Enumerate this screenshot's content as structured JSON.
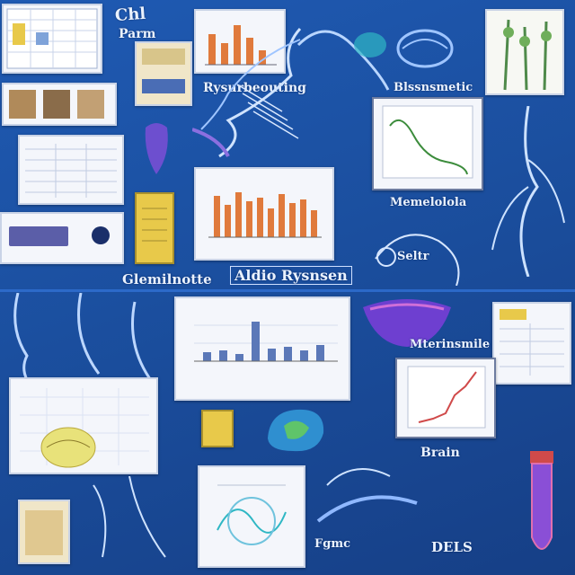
{
  "labels": {
    "top_left": "Chl",
    "top_left_2": "Parm",
    "chart_caption_1": "Rysurbeouting",
    "right_caption_1": "Blssnsmetic",
    "right_caption_2": "Memelolola",
    "right_caption_3": "Seltr",
    "bottom_left_title": "Glemilnotte",
    "center_title": "Aldio Rysnsen",
    "right_mid_caption": "Mterinsmile",
    "bottom_caption_1": "Brain",
    "bottom_caption_2": "Fgmc",
    "bottom_caption_3": "DELS"
  },
  "colors": {
    "background": "#1b4f9f",
    "card": "#f4f6fb",
    "bar_orange": "#e07a3c",
    "bar_blue": "#5b78b8",
    "accent_purple": "#7b4fd6",
    "accent_teal": "#2fb7c4",
    "accent_yellow": "#e8c94a"
  }
}
